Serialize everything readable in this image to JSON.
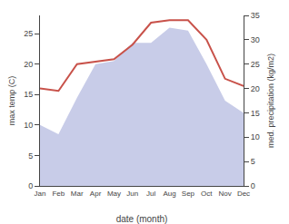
{
  "chart_data": {
    "type": "line",
    "xlabel": "date (month)",
    "ylabel": "max temp (C)",
    "y2label": "med. precipitation (kg/m2)",
    "categories": [
      "Jan",
      "Feb",
      "Mar",
      "Apr",
      "May",
      "Jun",
      "Jul",
      "Aug",
      "Sep",
      "Oct",
      "Nov",
      "Dec"
    ],
    "series": [
      {
        "type": "area",
        "color": "#c8cce8",
        "values": [
          10.0,
          8.5,
          14.5,
          20.0,
          20.5,
          23.5,
          23.5,
          26.0,
          25.5,
          20.0,
          14.0,
          12.0
        ]
      },
      {
        "type": "line",
        "color": "#c8524a",
        "axis": "y2",
        "values": [
          20.0,
          19.5,
          25.0,
          25.5,
          26.0,
          29.0,
          33.5,
          34.0,
          34.0,
          30.0,
          22.0,
          20.5
        ]
      }
    ],
    "ylim": [
      0,
      28
    ],
    "yticks": [
      0,
      5,
      10,
      15,
      20,
      25
    ],
    "y2lim": [
      0,
      35
    ],
    "y2ticks": [
      0,
      5,
      10,
      15,
      20,
      25,
      30,
      35
    ],
    "grid": false
  }
}
